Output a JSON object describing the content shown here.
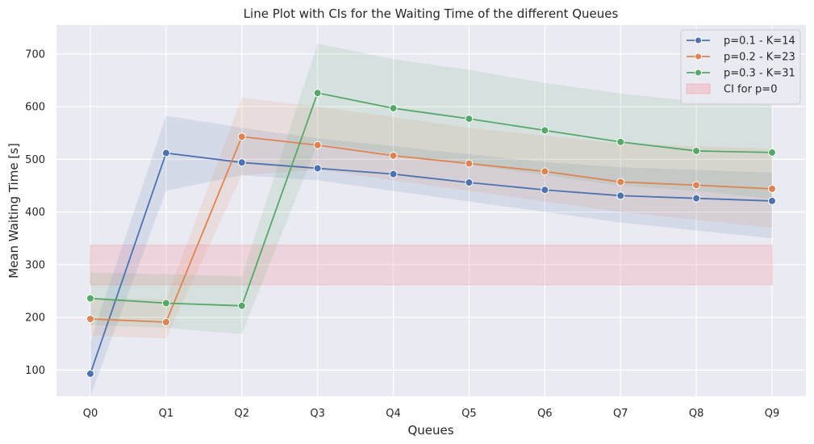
{
  "chart_data": {
    "type": "line",
    "title": "Line Plot with CIs for the Waiting Time of the different Queues",
    "xlabel": "Queues",
    "ylabel": "Mean Waiting Time [s]",
    "categories": [
      "Q0",
      "Q1",
      "Q2",
      "Q3",
      "Q4",
      "Q5",
      "Q6",
      "Q7",
      "Q8",
      "Q9"
    ],
    "ylim": [
      50,
      755
    ],
    "yticks": [
      100,
      200,
      300,
      400,
      500,
      600,
      700
    ],
    "grid": true,
    "legend_position": "top-right",
    "background": "#eaeaf2",
    "series": [
      {
        "name": "p=0.1 - K=14",
        "color": "#4c72b0",
        "values": [
          93,
          512,
          494,
          483,
          472,
          456,
          442,
          431,
          426,
          421
        ],
        "ci_lower": [
          50,
          440,
          470,
          460,
          440,
          420,
          400,
          380,
          365,
          350
        ],
        "ci_upper": [
          155,
          583,
          560,
          540,
          525,
          510,
          495,
          485,
          480,
          475
        ]
      },
      {
        "name": "p=0.2 - K=23",
        "color": "#dd8452",
        "values": [
          197,
          191,
          543,
          527,
          507,
          492,
          477,
          457,
          451,
          444
        ],
        "ci_lower": [
          165,
          160,
          470,
          480,
          460,
          440,
          420,
          400,
          385,
          370
        ],
        "ci_upper": [
          235,
          235,
          617,
          600,
          580,
          560,
          545,
          530,
          525,
          520
        ]
      },
      {
        "name": "p=0.3 - K=31",
        "color": "#55a868",
        "values": [
          236,
          227,
          222,
          626,
          597,
          577,
          555,
          533,
          516,
          513
        ],
        "ci_lower": [
          185,
          180,
          168,
          530,
          510,
          490,
          470,
          450,
          440,
          425
        ],
        "ci_upper": [
          285,
          282,
          278,
          720,
          690,
          670,
          645,
          625,
          610,
          605
        ]
      }
    ],
    "reference_band": {
      "name": "CI for p=0",
      "color": "#f4aab4",
      "lower": 262,
      "upper": 337,
      "from_category": "Q0",
      "to_category": "Q9"
    }
  }
}
